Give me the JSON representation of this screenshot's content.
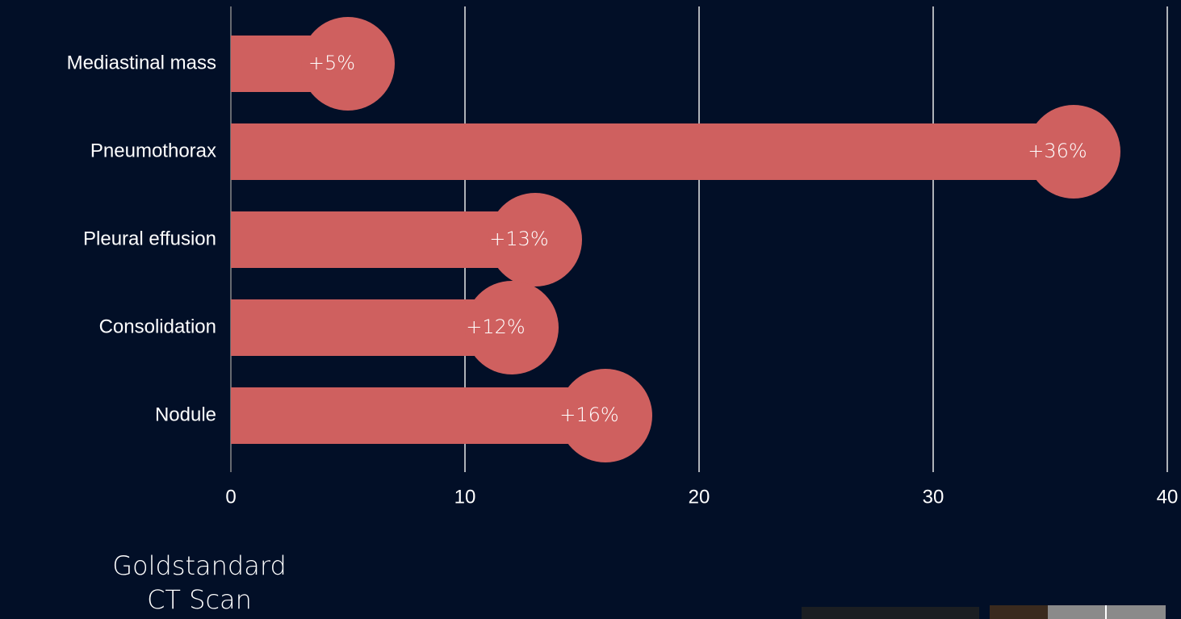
{
  "chart_data": {
    "type": "bar",
    "orientation": "horizontal",
    "categories": [
      "Mediastinal mass",
      "Pneumothorax",
      "Pleural effusion",
      "Consolidation",
      "Nodule"
    ],
    "values": [
      5,
      36,
      13,
      12,
      16
    ],
    "value_labels": [
      "+5%",
      "+36%",
      "+13%",
      "+12%",
      "+16%"
    ],
    "color": "#cf605f",
    "xlim": [
      0,
      40
    ],
    "xticks": [
      0,
      10,
      20,
      30,
      40
    ],
    "grid": true
  },
  "caption": [
    "Goldstandard",
    "CT Scan"
  ]
}
